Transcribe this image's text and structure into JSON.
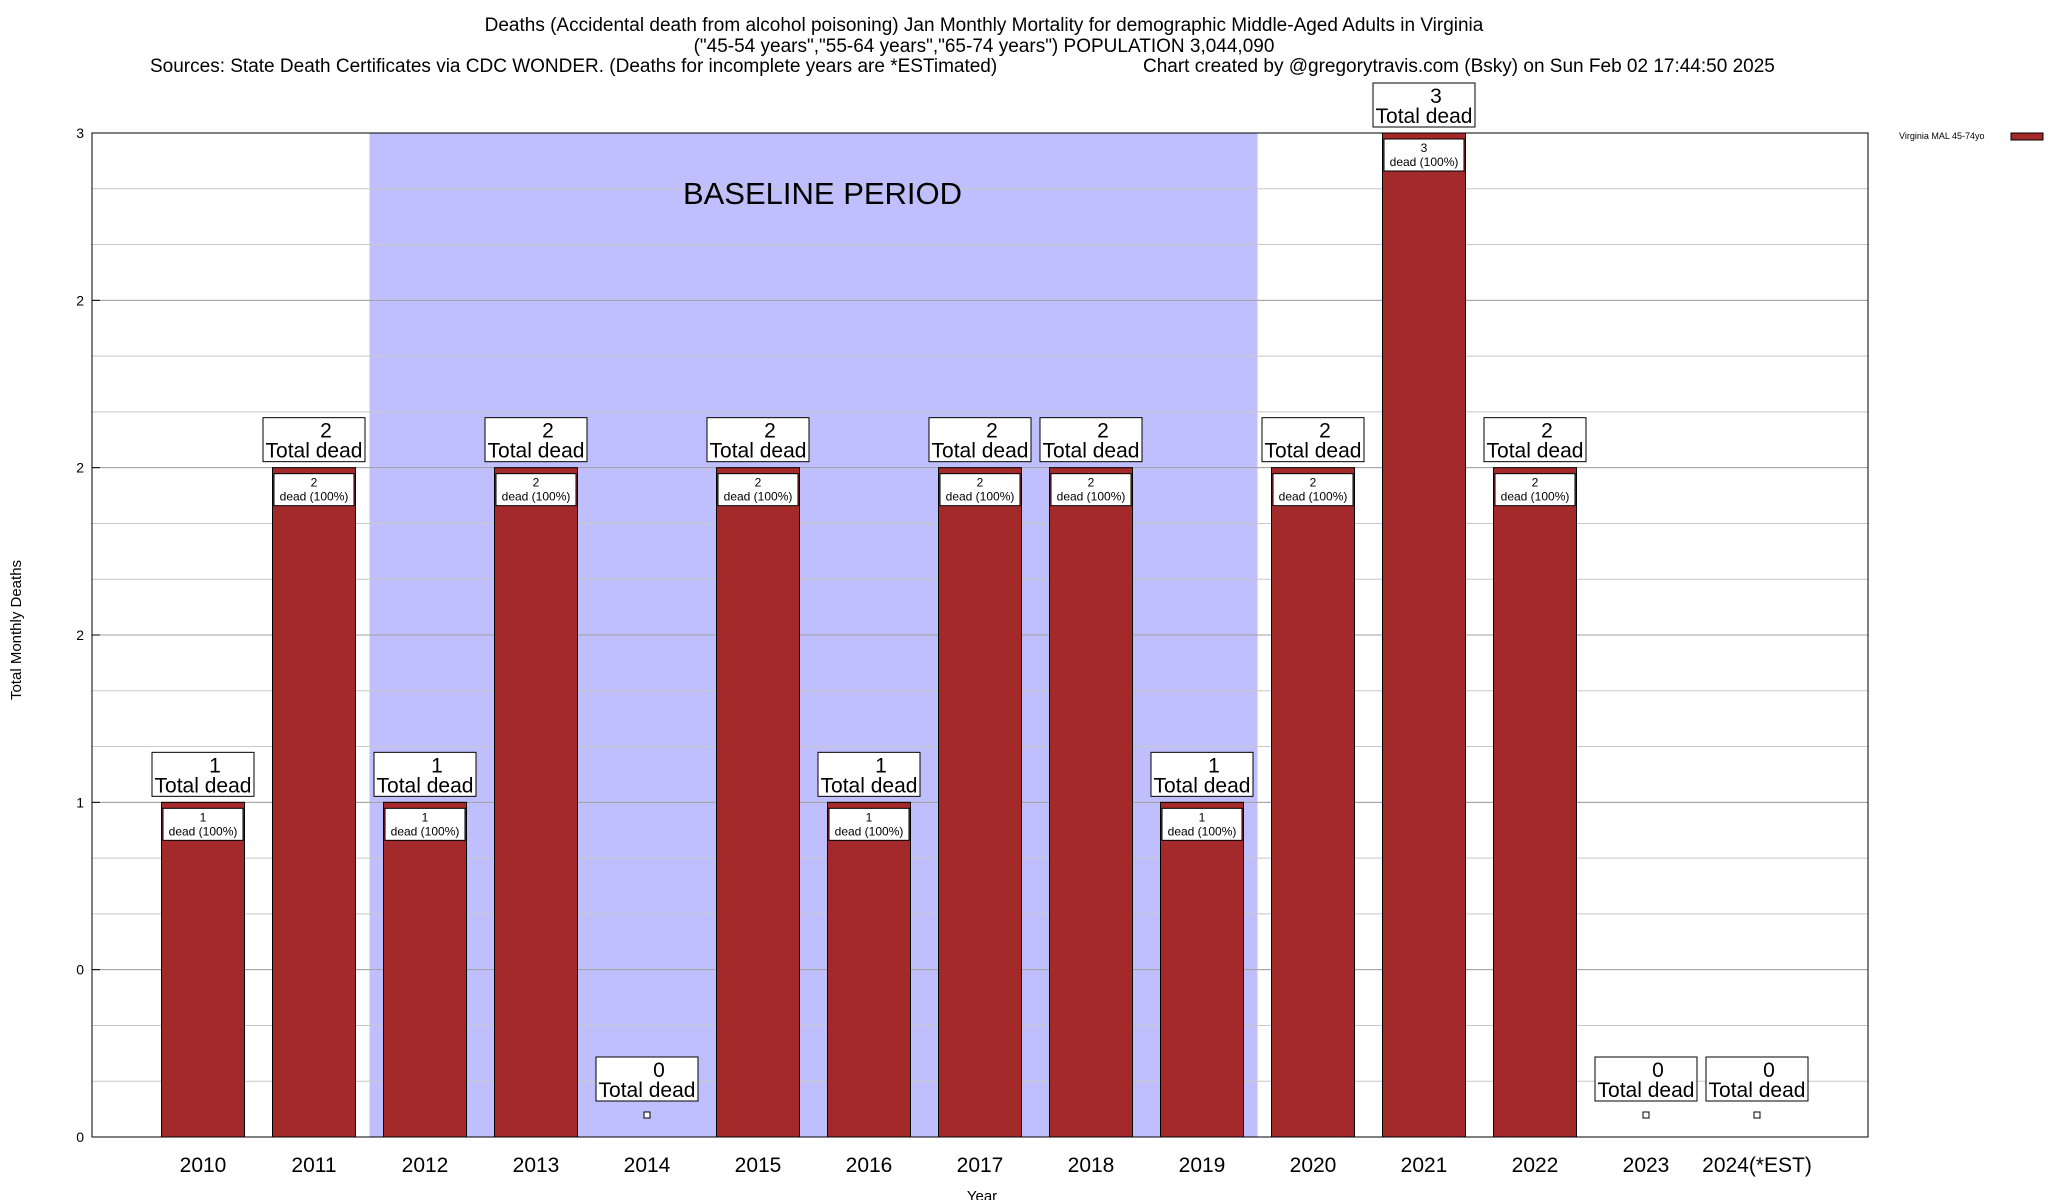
{
  "title": {
    "line1": "Deaths (Accidental death from alcohol poisoning) Jan Monthly Mortality for demographic Middle-Aged Adults in Virginia",
    "line2": "(\"45-54 years\",\"55-64 years\",\"65-74 years\") POPULATION 3,044,090",
    "line3_source": "Sources: State Death Certificates via CDC WONDER. (Deaths for incomplete years are *ESTimated)",
    "line3_credit": "Chart created by @gregorytravis.com (Bsky) on Sun Feb 02 17:44:50 2025"
  },
  "annotation": "BASELINE PERIOD",
  "chart_data": {
    "type": "bar",
    "categories": [
      "2010",
      "2011",
      "2012",
      "2013",
      "2014",
      "2015",
      "2016",
      "2017",
      "2018",
      "2019",
      "2020",
      "2021",
      "2022",
      "2023",
      "2024(*EST)"
    ],
    "series": [
      {
        "name": "Virginia MAL 45-74yo",
        "color": "#a3292a",
        "values": [
          1,
          2,
          1,
          2,
          0,
          2,
          1,
          2,
          2,
          1,
          2,
          3,
          2,
          0,
          0
        ]
      }
    ],
    "total_labels": [
      "1",
      "2",
      "1",
      "2",
      "0",
      "2",
      "1",
      "2",
      "2",
      "1",
      "2",
      "3",
      "2",
      "0",
      "0"
    ],
    "total_label_suffix": "Total dead",
    "inner_labels": [
      "1",
      "2",
      "1",
      "2",
      "",
      "2",
      "1",
      "2",
      "2",
      "1",
      "2",
      "3",
      "2",
      "",
      ""
    ],
    "inner_label_suffix": "dead (100%)",
    "xlabel": "Year",
    "ylabel": "Total Monthly Deaths",
    "ylim": [
      0,
      3
    ],
    "yticks": [
      0,
      0.5,
      1,
      1.5,
      2,
      2.5,
      3
    ],
    "ytick_labels": [
      "0",
      "0",
      "1",
      "2",
      "2",
      "2",
      "3"
    ],
    "baseline_period": {
      "from": "2012",
      "to": "2019",
      "color": "#bfbffd"
    },
    "grid": true,
    "legend_position": "top-right"
  }
}
